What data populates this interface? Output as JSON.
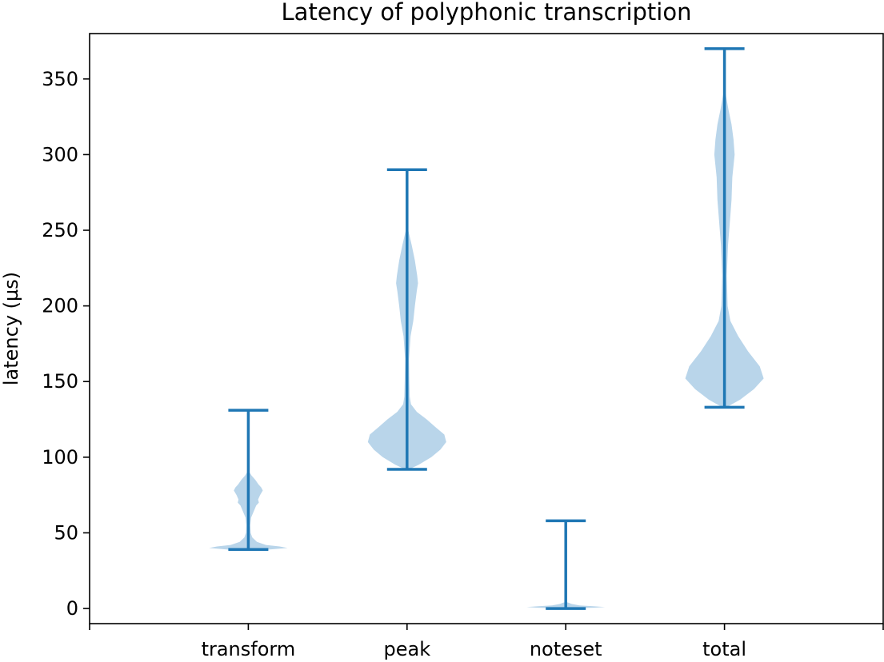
{
  "chart_data": {
    "type": "violin",
    "title": "Latency of polyphonic transcription",
    "xlabel": "",
    "ylabel": "latency (µs)",
    "categories": [
      "transform",
      "peak",
      "noteset",
      "total"
    ],
    "ylim": [
      -10,
      380
    ],
    "yticks": [
      0,
      50,
      100,
      150,
      200,
      250,
      300,
      350
    ],
    "grid": false,
    "fill_color": "#b9d5ea",
    "line_color": "#1f77b4",
    "series": [
      {
        "category": "transform",
        "min": 39,
        "max": 131,
        "profile": [
          [
            38,
            0.05
          ],
          [
            39,
            0.55
          ],
          [
            40,
            1.0
          ],
          [
            41,
            0.8
          ],
          [
            42,
            0.45
          ],
          [
            44,
            0.22
          ],
          [
            47,
            0.1
          ],
          [
            50,
            0.06
          ],
          [
            55,
            0.05
          ],
          [
            60,
            0.07
          ],
          [
            65,
            0.15
          ],
          [
            68,
            0.2
          ],
          [
            70,
            0.27
          ],
          [
            72,
            0.25
          ],
          [
            75,
            0.3
          ],
          [
            78,
            0.37
          ],
          [
            80,
            0.33
          ],
          [
            82,
            0.26
          ],
          [
            85,
            0.18
          ],
          [
            88,
            0.08
          ],
          [
            90,
            0.03
          ]
        ]
      },
      {
        "category": "peak",
        "min": 92,
        "max": 290,
        "profile": [
          [
            92,
            0.05
          ],
          [
            95,
            0.3
          ],
          [
            100,
            0.62
          ],
          [
            105,
            0.85
          ],
          [
            110,
            1.0
          ],
          [
            115,
            0.95
          ],
          [
            120,
            0.72
          ],
          [
            125,
            0.5
          ],
          [
            130,
            0.25
          ],
          [
            135,
            0.1
          ],
          [
            140,
            0.07
          ],
          [
            150,
            0.06
          ],
          [
            165,
            0.05
          ],
          [
            180,
            0.09
          ],
          [
            190,
            0.16
          ],
          [
            200,
            0.2
          ],
          [
            210,
            0.25
          ],
          [
            215,
            0.28
          ],
          [
            220,
            0.26
          ],
          [
            230,
            0.2
          ],
          [
            240,
            0.12
          ],
          [
            250,
            0.03
          ]
        ]
      },
      {
        "category": "noteset",
        "min": 0,
        "max": 58,
        "profile": [
          [
            0,
            0.05
          ],
          [
            0.5,
            0.7
          ],
          [
            1,
            1.0
          ],
          [
            1.5,
            0.7
          ],
          [
            2,
            0.35
          ],
          [
            3,
            0.15
          ],
          [
            4,
            0.05
          ]
        ]
      },
      {
        "category": "total",
        "min": 133,
        "max": 370,
        "profile": [
          [
            133,
            0.05
          ],
          [
            138,
            0.4
          ],
          [
            145,
            0.75
          ],
          [
            152,
            1.0
          ],
          [
            160,
            0.9
          ],
          [
            170,
            0.6
          ],
          [
            180,
            0.35
          ],
          [
            190,
            0.15
          ],
          [
            200,
            0.08
          ],
          [
            220,
            0.06
          ],
          [
            240,
            0.09
          ],
          [
            260,
            0.15
          ],
          [
            270,
            0.18
          ],
          [
            285,
            0.2
          ],
          [
            300,
            0.26
          ],
          [
            310,
            0.23
          ],
          [
            320,
            0.18
          ],
          [
            330,
            0.1
          ],
          [
            340,
            0.03
          ]
        ]
      }
    ]
  }
}
